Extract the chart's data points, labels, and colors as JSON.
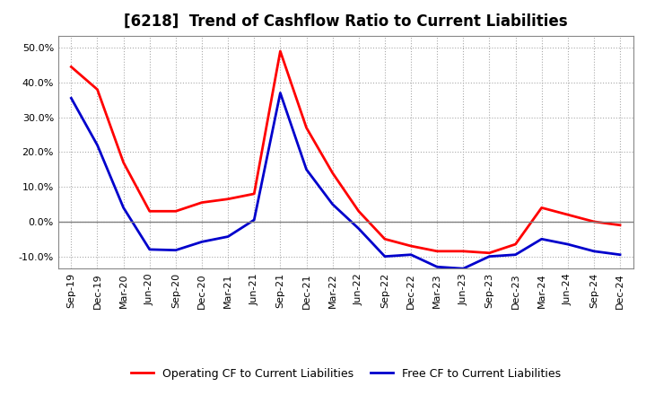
{
  "title": "[6218]  Trend of Cashflow Ratio to Current Liabilities",
  "x_labels": [
    "Sep-19",
    "Dec-19",
    "Mar-20",
    "Jun-20",
    "Sep-20",
    "Dec-20",
    "Mar-21",
    "Jun-21",
    "Sep-21",
    "Dec-21",
    "Mar-22",
    "Jun-22",
    "Sep-22",
    "Dec-22",
    "Mar-23",
    "Jun-23",
    "Sep-23",
    "Dec-23",
    "Mar-24",
    "Jun-24",
    "Sep-24",
    "Dec-24"
  ],
  "operating_cf": [
    0.445,
    0.38,
    0.17,
    0.03,
    0.03,
    0.055,
    0.065,
    0.08,
    0.49,
    0.27,
    0.14,
    0.03,
    -0.05,
    -0.07,
    -0.085,
    -0.085,
    -0.09,
    -0.065,
    0.04,
    0.02,
    0.0,
    -0.01
  ],
  "free_cf": [
    0.355,
    0.22,
    0.04,
    -0.08,
    -0.082,
    -0.058,
    -0.043,
    0.005,
    0.37,
    0.15,
    0.05,
    -0.02,
    -0.1,
    -0.095,
    -0.13,
    -0.135,
    -0.1,
    -0.095,
    -0.05,
    -0.065,
    -0.085,
    -0.095
  ],
  "ylim": [
    -0.135,
    0.535
  ],
  "yticks": [
    -0.1,
    0.0,
    0.1,
    0.2,
    0.3,
    0.4,
    0.5
  ],
  "operating_color": "#FF0000",
  "free_color": "#0000CC",
  "background_color": "#FFFFFF",
  "grid_color": "#AAAAAA",
  "zero_line_color": "#808080",
  "line_width": 2.0,
  "title_fontsize": 12,
  "legend_fontsize": 9,
  "tick_fontsize": 8
}
